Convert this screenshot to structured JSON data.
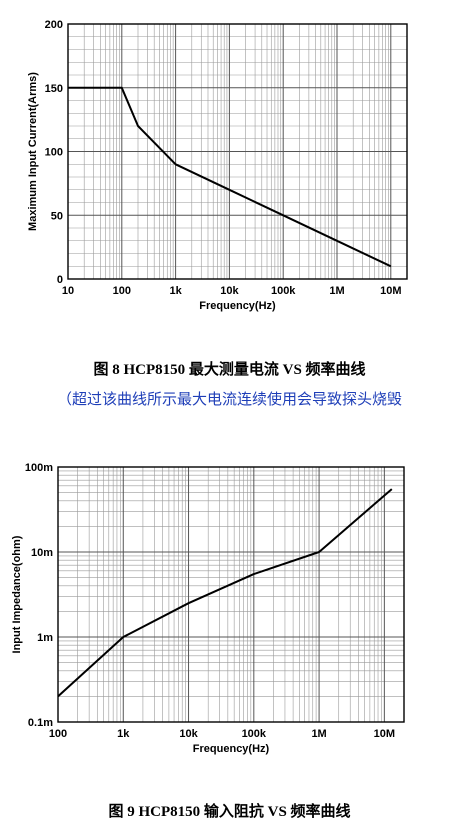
{
  "chart_data": [
    {
      "type": "line",
      "title": "",
      "xlabel": "Frequency(Hz)",
      "ylabel": "Maximum Input Current(Arms)",
      "x_scale": "log",
      "y_scale": "linear",
      "xlim": [
        10,
        20000000
      ],
      "ylim": [
        0,
        200
      ],
      "x_ticks": [
        10,
        100,
        1000,
        10000,
        100000,
        1000000,
        10000000
      ],
      "x_tick_labels": [
        "10",
        "100",
        "1k",
        "10k",
        "100k",
        "1M",
        "10M"
      ],
      "y_ticks": [
        0,
        50,
        100,
        150,
        200
      ],
      "y_tick_labels": [
        "0",
        "50",
        "100",
        "150",
        "200"
      ],
      "grid": true,
      "series": [
        {
          "x": [
            10,
            100,
            200,
            1000,
            10000,
            100000,
            1000000,
            10000000
          ],
          "y": [
            150,
            150,
            120,
            90,
            70,
            50,
            30,
            10
          ]
        }
      ]
    },
    {
      "type": "line",
      "title": "",
      "xlabel": "Frequency(Hz)",
      "ylabel": "Input Impedance(ohm)",
      "x_scale": "log",
      "y_scale": "log",
      "xlim": [
        100,
        20000000
      ],
      "ylim": [
        0.0001,
        0.1
      ],
      "x_ticks": [
        100,
        1000,
        10000,
        100000,
        1000000,
        10000000
      ],
      "x_tick_labels": [
        "100",
        "1k",
        "10k",
        "100k",
        "1M",
        "10M"
      ],
      "y_ticks": [
        0.0001,
        0.001,
        0.01,
        0.1
      ],
      "y_tick_labels": [
        "0.1m",
        "1m",
        "10m",
        "100m"
      ],
      "grid": true,
      "series": [
        {
          "x": [
            100,
            1000,
            10000,
            100000,
            1000000,
            13000000
          ],
          "y": [
            0.0002,
            0.001,
            0.0025,
            0.0055,
            0.01,
            0.055
          ]
        }
      ]
    }
  ],
  "captions": {
    "fig8": "图 8 HCP8150 最大测量电流 VS 频率曲线",
    "fig8_note": "（超过该曲线所示最大电流连续使用会导致探头烧毁",
    "fig9": "图 9 HCP8150 输入阻抗 VS 频率曲线"
  }
}
